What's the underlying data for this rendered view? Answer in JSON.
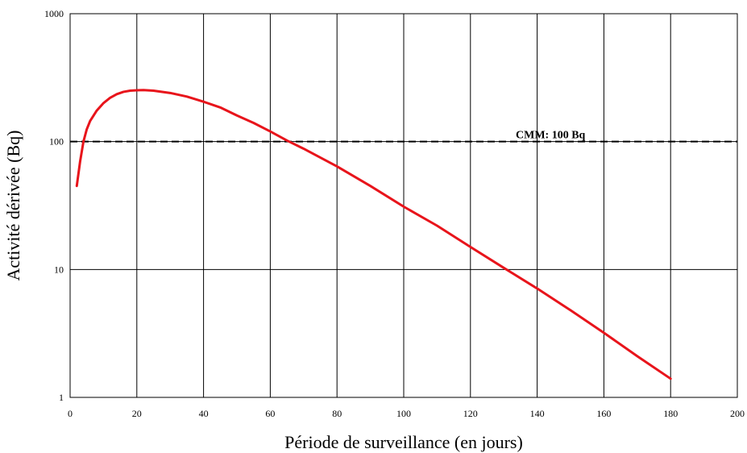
{
  "chart_data": {
    "type": "line",
    "title": "",
    "xlabel": "Période de surveillance (en jours)",
    "ylabel": "Activité dérivée (Bq)",
    "xlim": [
      0,
      200
    ],
    "ylim": [
      1,
      1000
    ],
    "y_scale": "log",
    "grid": true,
    "x_ticks": [
      0,
      20,
      40,
      60,
      80,
      100,
      120,
      140,
      160,
      180,
      200
    ],
    "y_ticks": [
      1,
      10,
      100,
      1000
    ],
    "x_tick_labels": [
      "0",
      "20",
      "40",
      "60",
      "80",
      "100",
      "120",
      "140",
      "160",
      "180",
      "200"
    ],
    "y_tick_labels": [
      "1",
      "10",
      "100",
      "1000"
    ],
    "series": [
      {
        "color": "#e8141b",
        "x": [
          2,
          3,
          4,
          5,
          6,
          8,
          10,
          12,
          14,
          16,
          18,
          20,
          22,
          25,
          30,
          35,
          40,
          45,
          50,
          55,
          60,
          65,
          70,
          80,
          90,
          100,
          110,
          120,
          130,
          140,
          150,
          160,
          170,
          180
        ],
        "y": [
          45,
          70,
          100,
          125,
          145,
          175,
          200,
          220,
          235,
          245,
          250,
          252,
          253,
          250,
          240,
          225,
          205,
          185,
          160,
          140,
          120,
          102,
          88,
          64,
          45,
          31,
          22,
          15,
          10.3,
          7.1,
          4.8,
          3.2,
          2.1,
          1.4
        ]
      }
    ],
    "reference_lines": [
      {
        "y": 100,
        "style": "dashed",
        "color": "#000000",
        "label": "CMM: 100 Bq"
      }
    ]
  }
}
